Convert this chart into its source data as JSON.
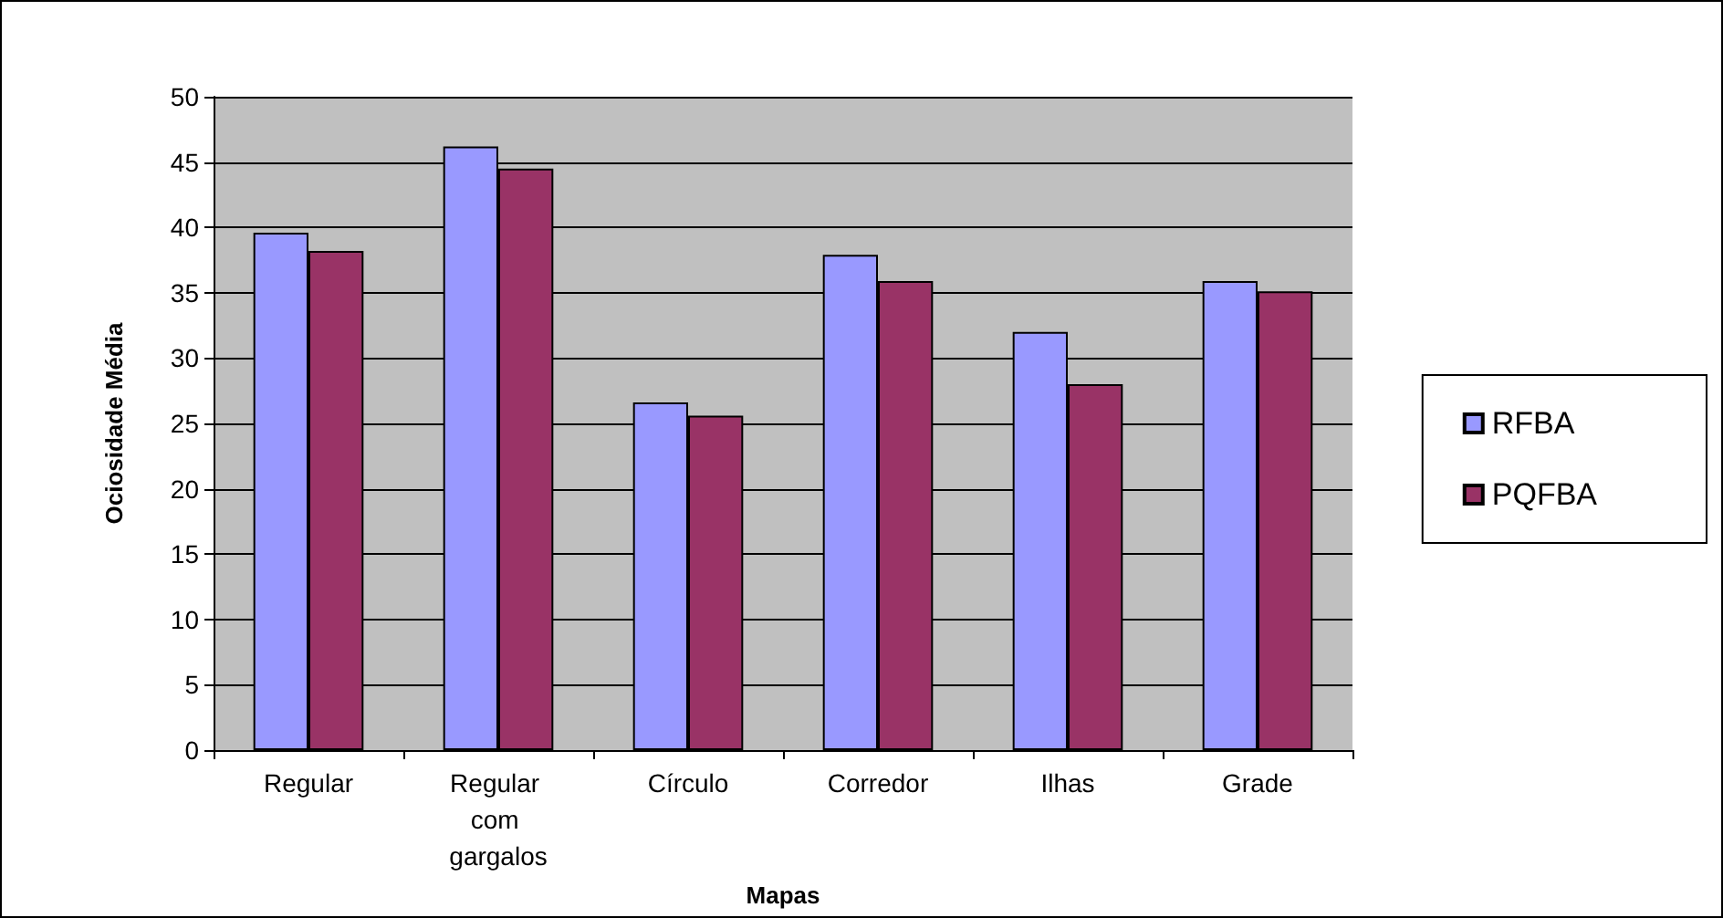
{
  "chart_data": {
    "type": "bar",
    "xlabel": "Mapas",
    "ylabel": "Ociosidade Média",
    "categories": [
      "Regular",
      "Regular com gargalos",
      "Círculo",
      "Corredor",
      "Ilhas",
      "Grade"
    ],
    "series": [
      {
        "name": "RFBA",
        "color": "#9999ff",
        "values": [
          39.6,
          46.2,
          26.6,
          37.9,
          32.0,
          35.9
        ]
      },
      {
        "name": "PQFBA",
        "color": "#993366",
        "values": [
          38.2,
          44.5,
          25.6,
          35.9,
          28.0,
          35.1
        ]
      }
    ],
    "ylim": [
      0,
      50
    ],
    "yticks": [
      0,
      5,
      10,
      15,
      20,
      25,
      30,
      35,
      40,
      45,
      50
    ],
    "grid": "y",
    "legend": "right"
  }
}
